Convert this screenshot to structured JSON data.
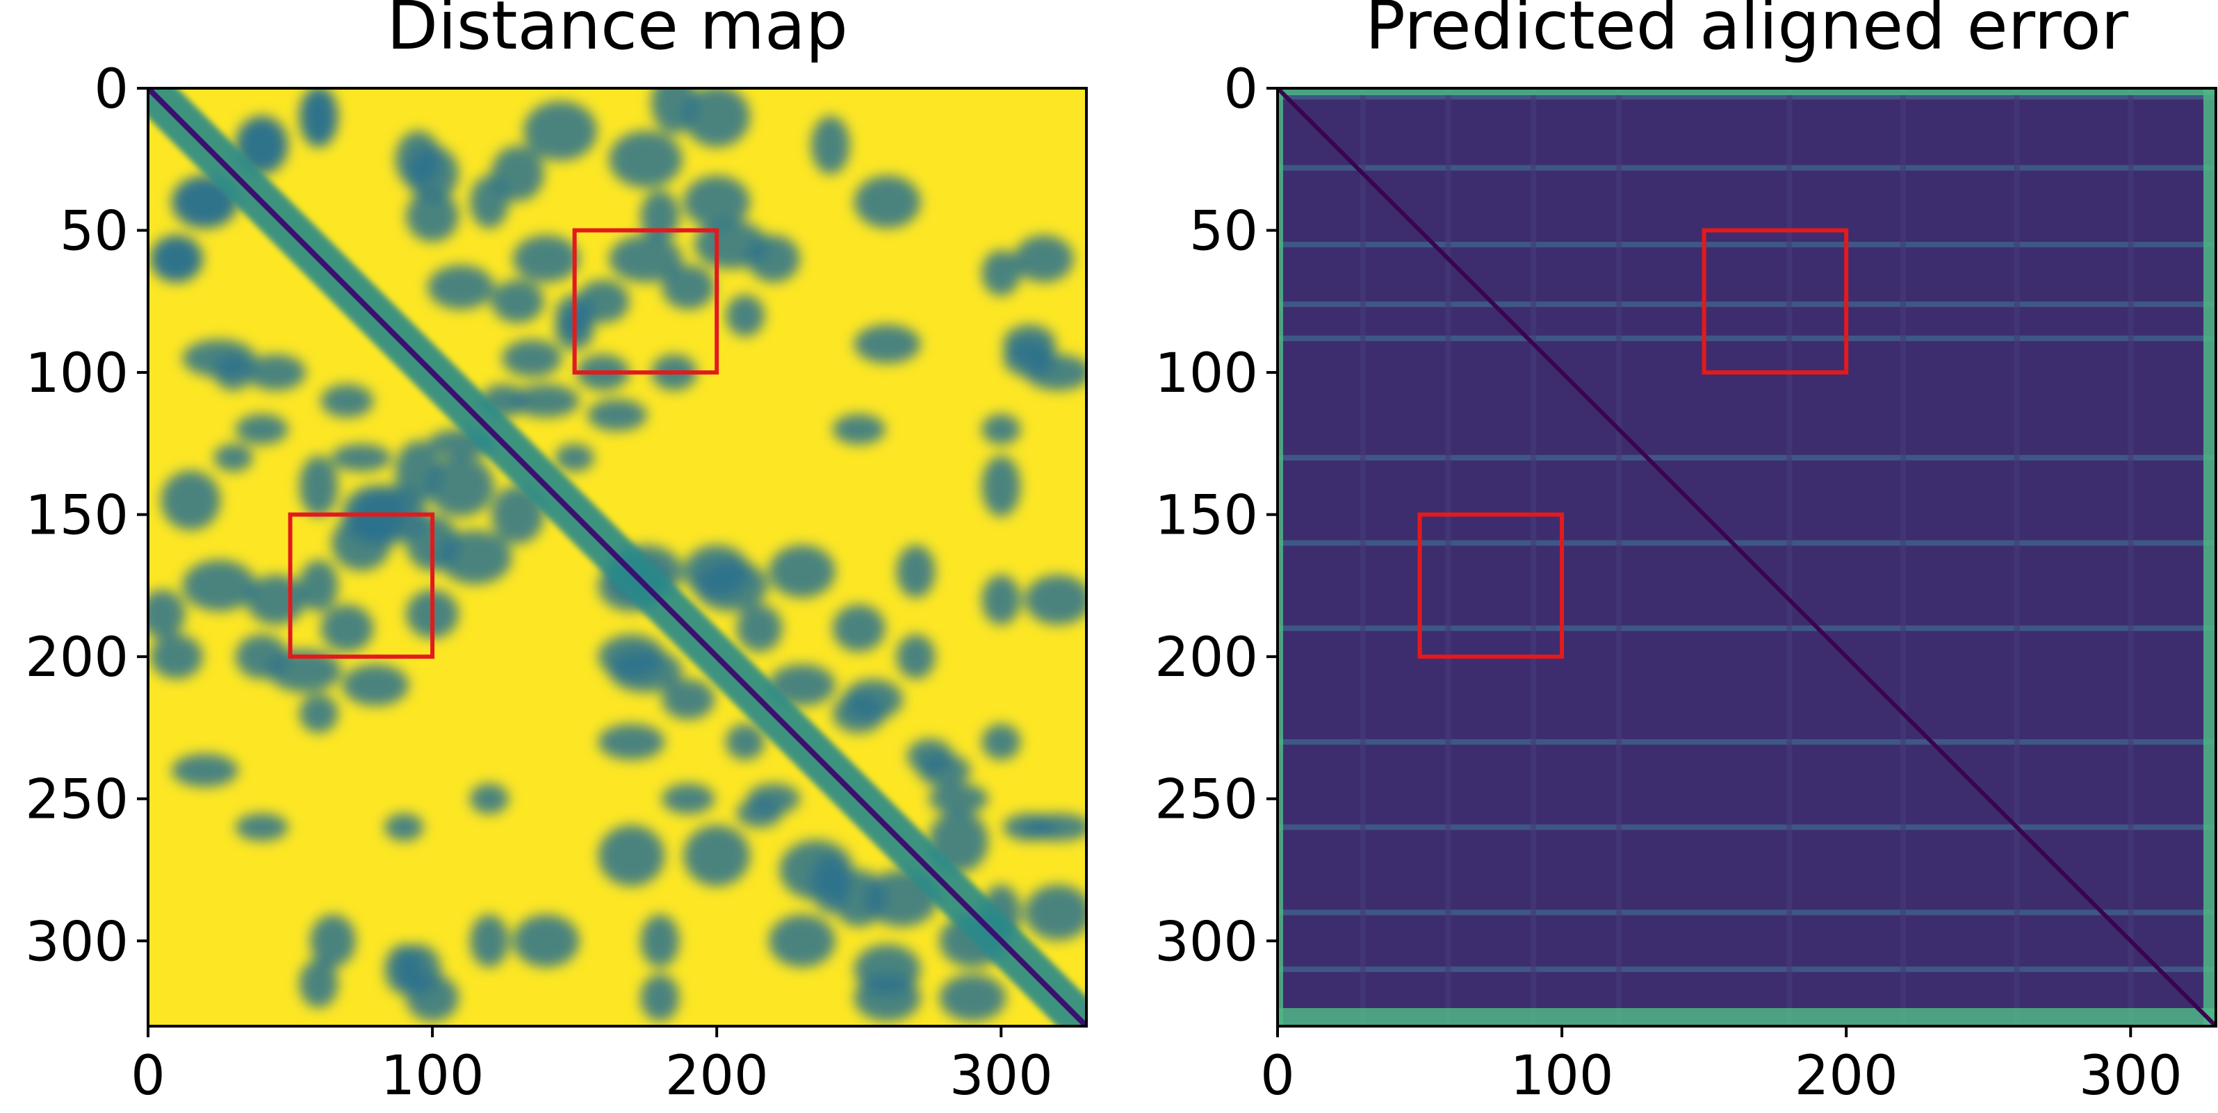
{
  "chart_data": [
    {
      "type": "heatmap",
      "title": "Distance map",
      "n": 330,
      "xlim": [
        0,
        330
      ],
      "ylim": [
        0,
        330
      ],
      "y_inverted": true,
      "xticks": [
        0,
        100,
        200,
        300
      ],
      "yticks": [
        0,
        50,
        100,
        150,
        200,
        250,
        300
      ],
      "colormap": "viridis",
      "dominant_color": "#fde725",
      "contact_color": "#2c728e",
      "diagonal_color": "#3b0f70",
      "highlight_boxes": [
        {
          "x": [
            150,
            200
          ],
          "y": [
            50,
            100
          ]
        },
        {
          "x": [
            50,
            100
          ],
          "y": [
            150,
            200
          ]
        }
      ],
      "box_color": "#e31a1c",
      "grid": false
    },
    {
      "type": "heatmap",
      "title": "Predicted aligned error",
      "n": 330,
      "xlim": [
        0,
        330
      ],
      "ylim": [
        0,
        330
      ],
      "y_inverted": true,
      "xticks": [
        0,
        100,
        200,
        300
      ],
      "yticks": [
        0,
        50,
        100,
        150,
        200,
        250,
        300
      ],
      "colormap": "viridis",
      "dominant_color": "#3d2d6e",
      "stripe_color": "#3f6a8e",
      "edge_color": "#4fb686",
      "diagonal_color": "#3b0450",
      "highlight_boxes": [
        {
          "x": [
            150,
            200
          ],
          "y": [
            50,
            100
          ]
        },
        {
          "x": [
            50,
            100
          ],
          "y": [
            150,
            200
          ]
        }
      ],
      "box_color": "#e31a1c",
      "grid": false
    }
  ]
}
